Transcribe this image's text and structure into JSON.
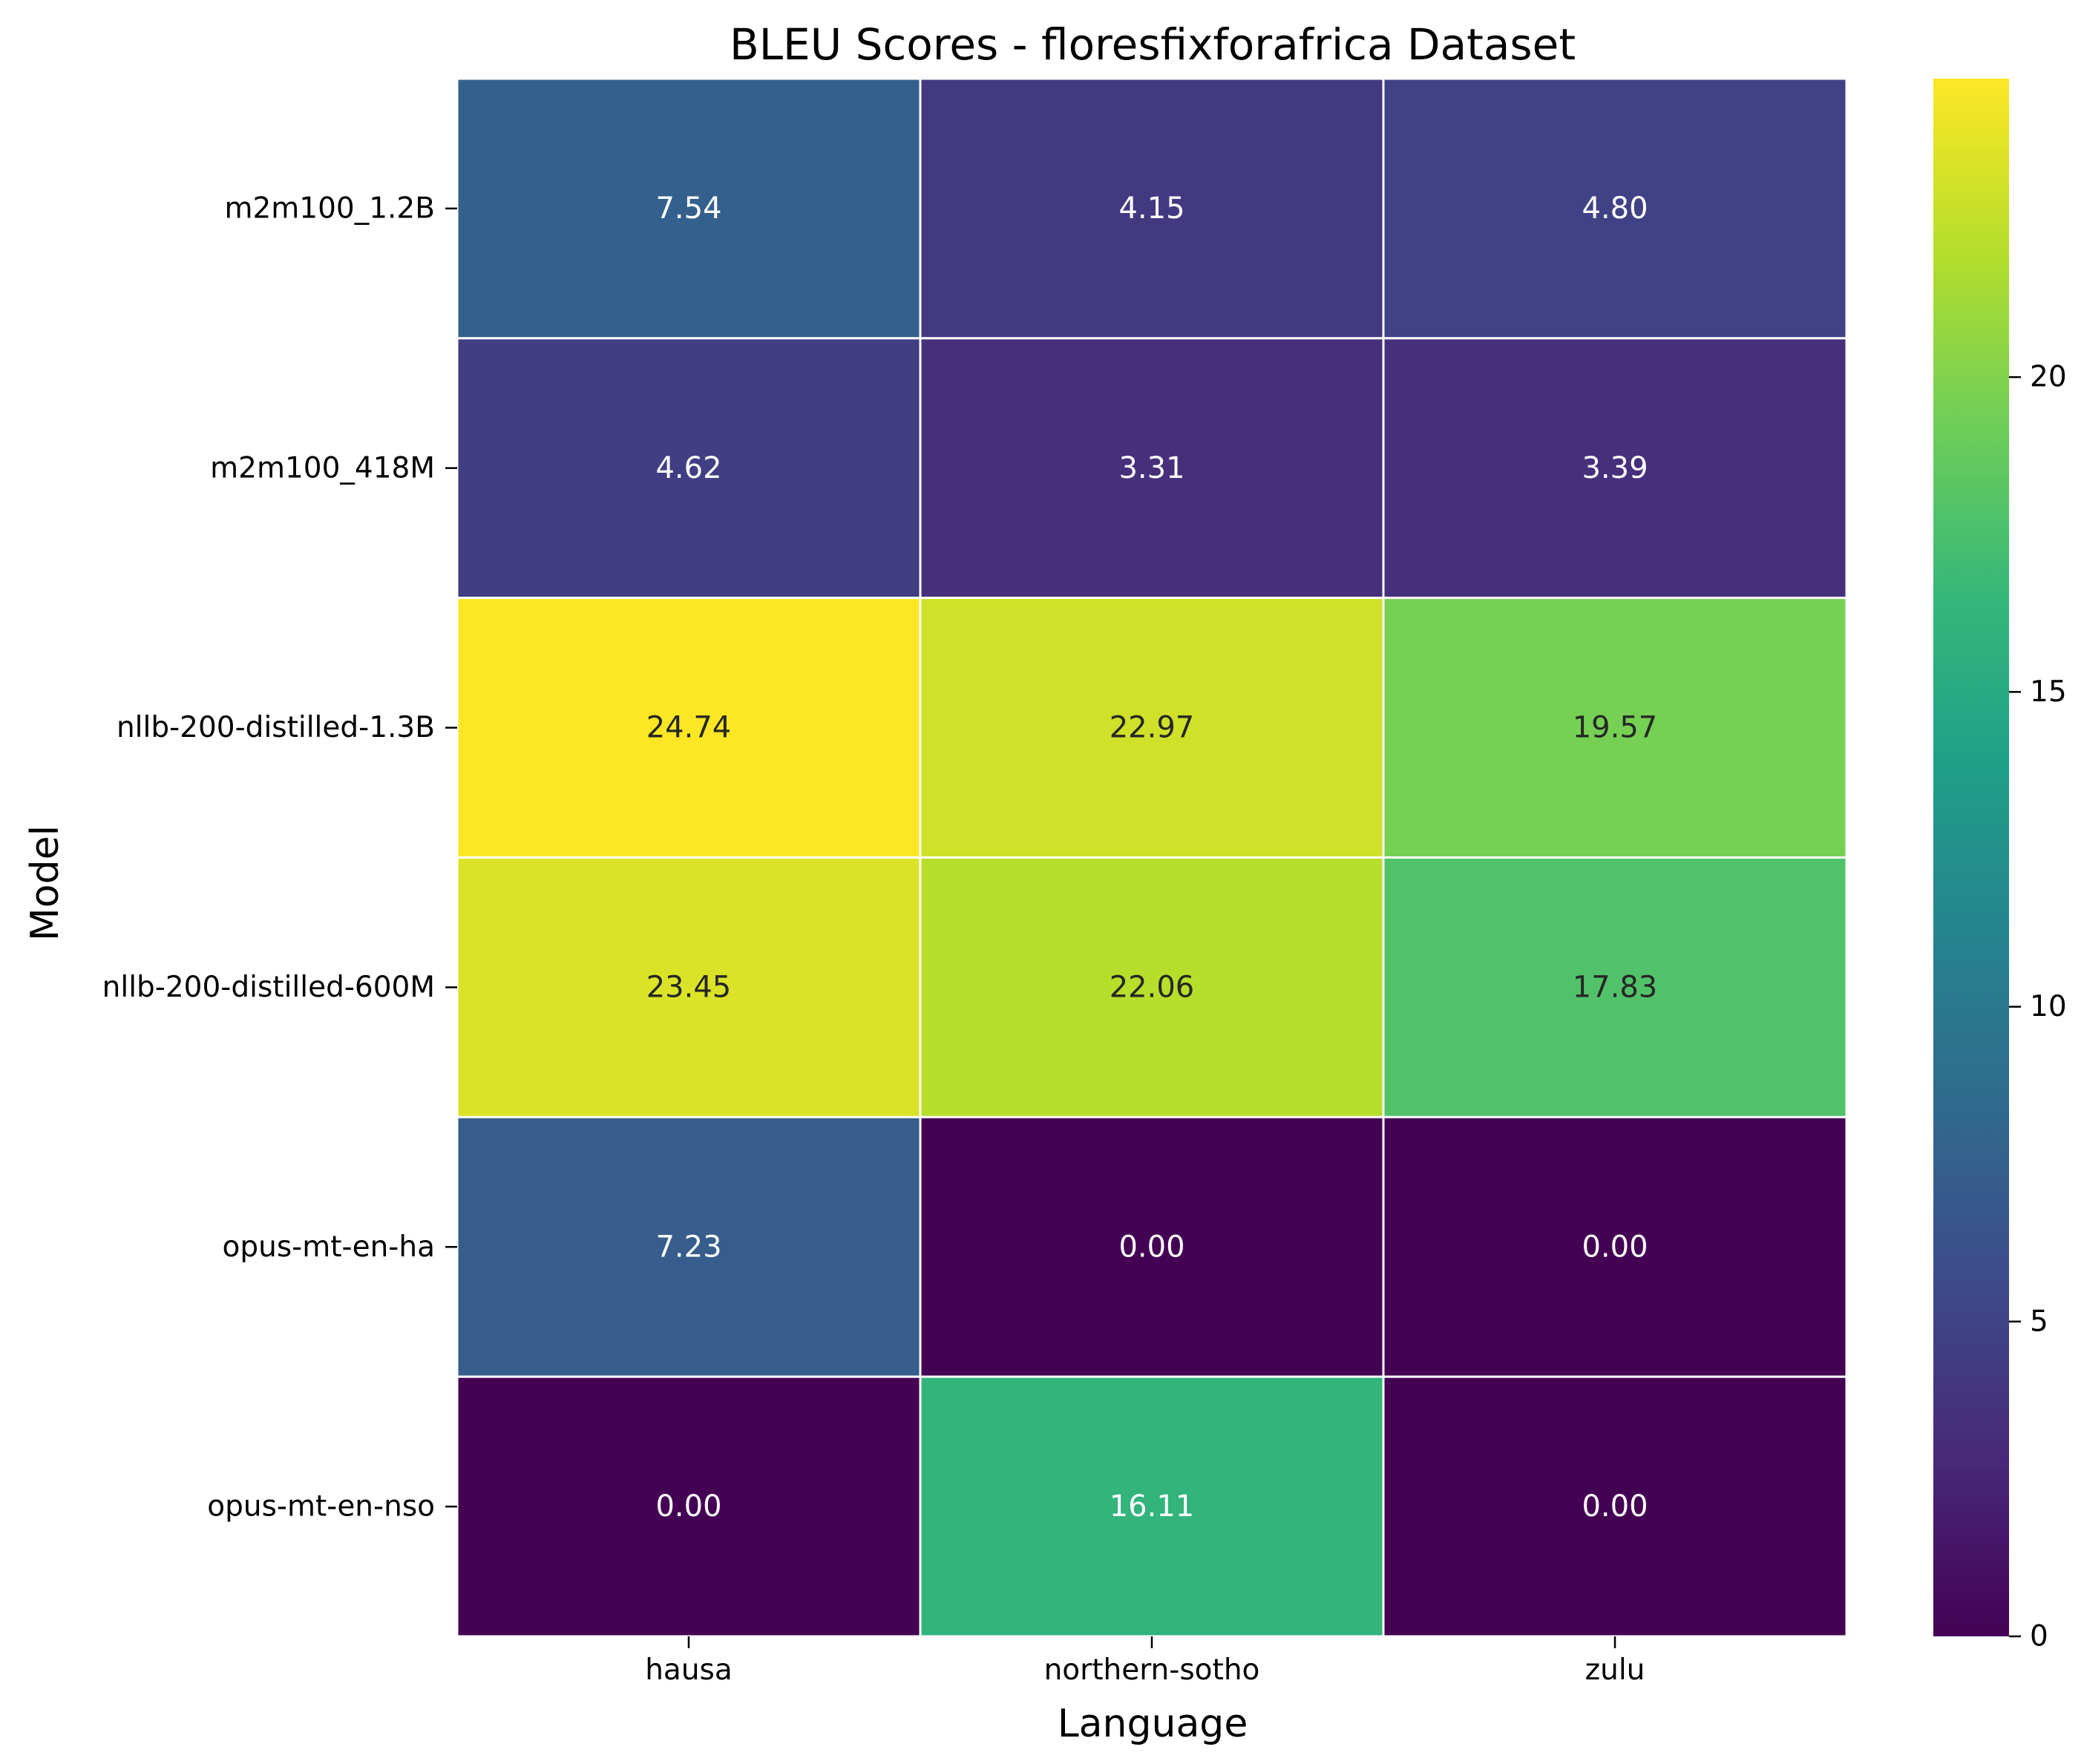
{
  "chart_data": {
    "type": "heatmap",
    "title": "BLEU Scores - floresfixforafrica Dataset",
    "xlabel": "Language",
    "ylabel": "Model",
    "columns": [
      "hausa",
      "northern-sotho",
      "zulu"
    ],
    "rows": [
      "m2m100_1.2B",
      "m2m100_418M",
      "nllb-200-distilled-1.3B",
      "nllb-200-distilled-600M",
      "opus-mt-en-ha",
      "opus-mt-en-nso"
    ],
    "values": [
      [
        7.54,
        4.15,
        4.8
      ],
      [
        4.62,
        3.31,
        3.39
      ],
      [
        24.74,
        22.97,
        19.57
      ],
      [
        23.45,
        22.06,
        17.83
      ],
      [
        7.23,
        0.0,
        0.0
      ],
      [
        0.0,
        16.11,
        0.0
      ]
    ],
    "cell_labels": [
      [
        "7.54",
        "4.15",
        "4.80"
      ],
      [
        "4.62",
        "3.31",
        "3.39"
      ],
      [
        "24.74",
        "22.97",
        "19.57"
      ],
      [
        "23.45",
        "22.06",
        "17.83"
      ],
      [
        "7.23",
        "0.00",
        "0.00"
      ],
      [
        "0.00",
        "16.11",
        "0.00"
      ]
    ],
    "colormap": "viridis",
    "vmin": 0,
    "vmax": 24.74,
    "colorbar": {
      "ticks": [
        0,
        5,
        10,
        15,
        20
      ],
      "tick_labels": [
        "0",
        "5",
        "10",
        "15",
        "20"
      ]
    },
    "cell_border_color": "#ffffff",
    "text_color_light": "#ffffff",
    "text_color_dark": "#262626"
  }
}
